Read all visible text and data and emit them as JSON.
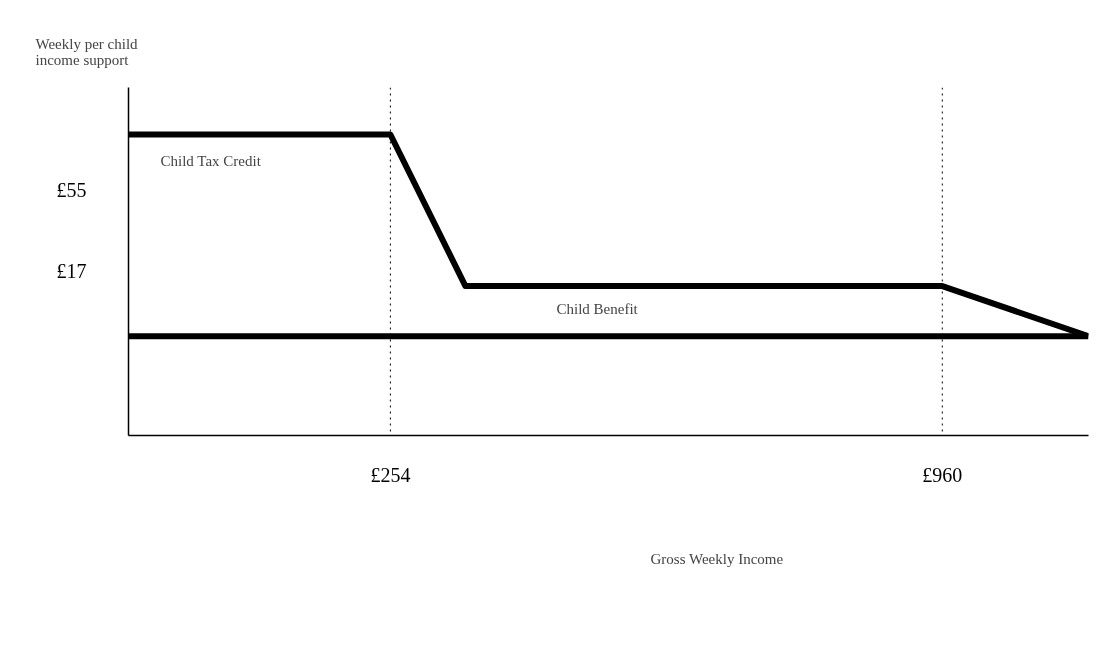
{
  "chart_data": {
    "type": "line",
    "ylabel": "Weekly per child income support",
    "xlabel": "Gross Weekly Income",
    "xlim": [
      -81,
      1147
    ],
    "ylim": [
      -60,
      103
    ],
    "xticks": [
      {
        "value": 254,
        "label": "£254"
      },
      {
        "value": 960,
        "label": "£960"
      }
    ],
    "yticks": [
      {
        "value": 55,
        "label": "£55"
      },
      {
        "value": 17,
        "label": "£17"
      }
    ],
    "series": [
      {
        "color": "#000000",
        "x": [
          -81,
          254,
          350,
          960,
          1147
        ],
        "values": [
          81,
          81,
          10,
          10,
          -13.5
        ]
      },
      {
        "color": "#000000",
        "x": [
          -81,
          1147
        ],
        "values": [
          -13.5,
          -13.5
        ]
      }
    ],
    "ref_lines": [
      {
        "axis": "x",
        "value": 254,
        "line_style": "dotted",
        "color": "#000000"
      },
      {
        "axis": "x",
        "value": 960,
        "line_style": "dotted",
        "color": "#000000"
      }
    ],
    "annotations": [
      "Child Tax Credit",
      "Child Benefit"
    ],
    "grid": false,
    "marker": "none",
    "line_style": "solid"
  }
}
